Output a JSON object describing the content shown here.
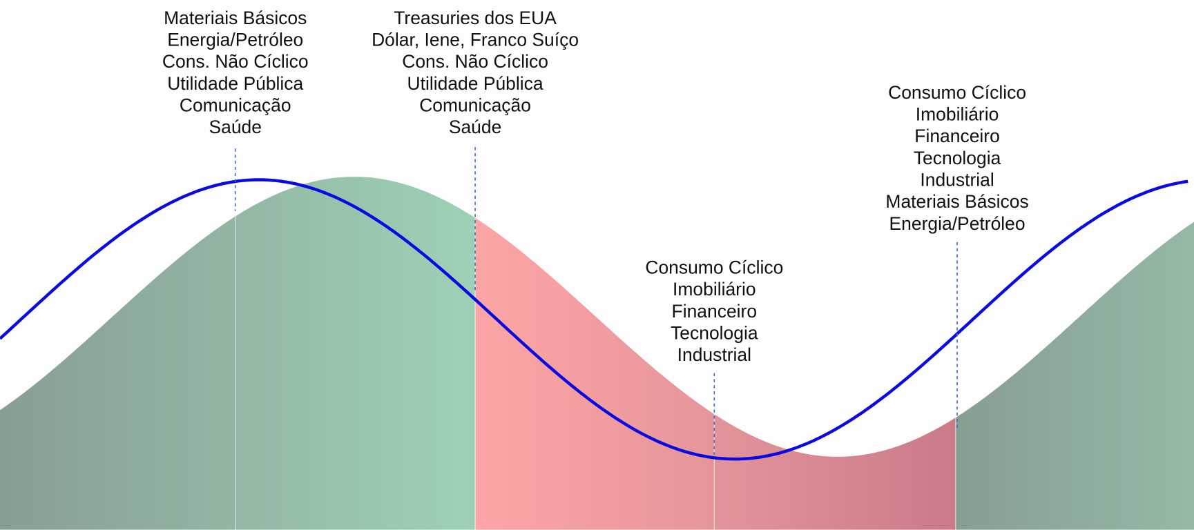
{
  "groups": [
    {
      "lines": [
        "Materiais Básicos",
        "Energia/Petróleo",
        "Cons. Não Cíclico",
        "Utilidade Pública",
        "Comunicação",
        "Saúde"
      ]
    },
    {
      "lines": [
        "Treasuries dos EUA",
        "Dólar, Iene, Franco Suíço",
        "Cons. Não Cíclico",
        "Utilidade Pública",
        "Comunicação",
        "Saúde"
      ]
    },
    {
      "lines": [
        "Consumo Cíclico",
        "Imobiliário",
        "Financeiro",
        "Tecnologia",
        "Industrial"
      ]
    },
    {
      "lines": [
        "Consumo Cíclico",
        "Imobiliário",
        "Financeiro",
        "Tecnologia",
        "Industrial",
        "Materiais Básicos",
        "Energia/Petróleo"
      ]
    }
  ]
}
